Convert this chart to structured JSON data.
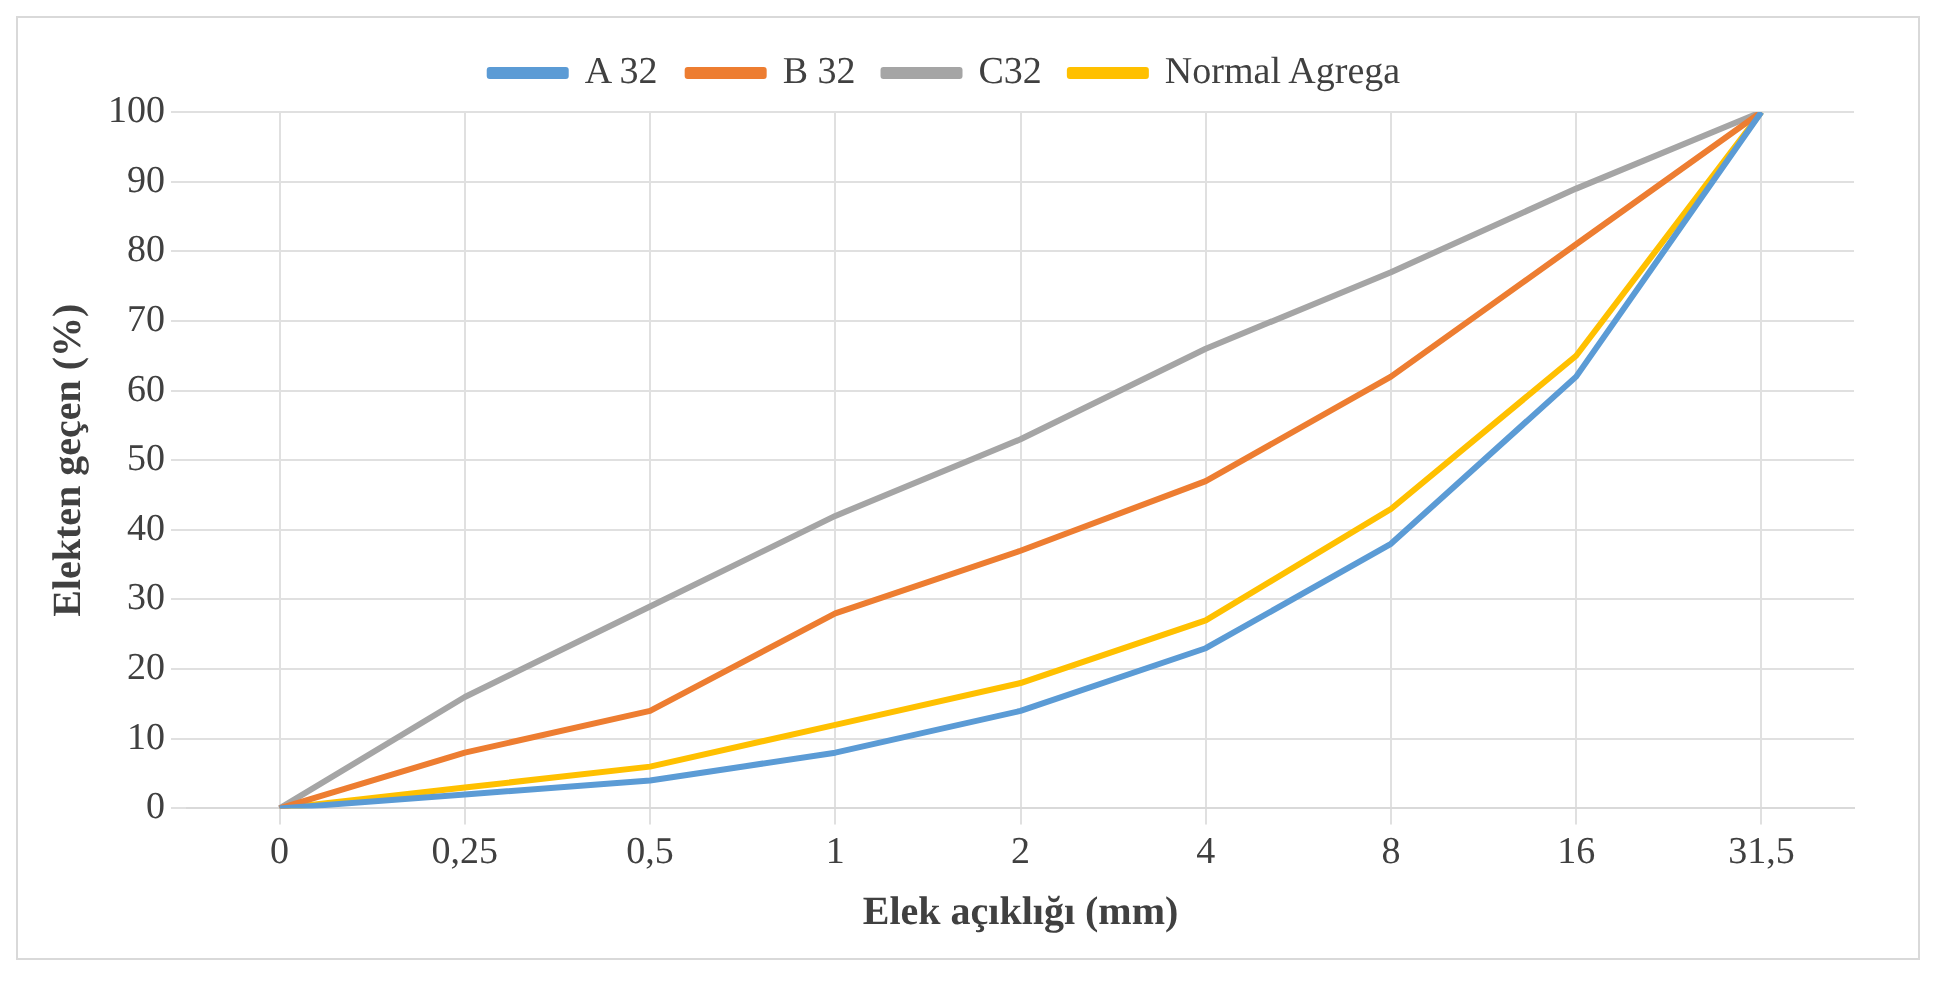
{
  "chart_data": {
    "type": "line",
    "xlabel": "Elek açıklığı (mm)",
    "ylabel": "Elekten geçen (%)",
    "categories": [
      "0",
      "0,25",
      "0,5",
      "1",
      "2",
      "4",
      "8",
      "16",
      "31,5"
    ],
    "series": [
      {
        "name": "A 32",
        "color": "#5b9bd5",
        "values": [
          0,
          2,
          4,
          8,
          14,
          23,
          38,
          62,
          100
        ]
      },
      {
        "name": "B 32",
        "color": "#ed7d31",
        "values": [
          0,
          8,
          14,
          28,
          37,
          47,
          62,
          81,
          100
        ]
      },
      {
        "name": "C32",
        "color": "#a5a5a5",
        "values": [
          0,
          16,
          29,
          42,
          53,
          66,
          77,
          89,
          100
        ]
      },
      {
        "name": "Normal Agrega",
        "color": "#ffc000",
        "values": [
          0,
          3,
          6,
          12,
          18,
          27,
          43,
          65,
          100
        ]
      }
    ],
    "ylim": [
      0,
      100
    ],
    "yticks": [
      0,
      10,
      20,
      30,
      40,
      50,
      60,
      70,
      80,
      90,
      100
    ],
    "grid": true,
    "legend": "top",
    "marker": "none",
    "line_style": "solid"
  }
}
